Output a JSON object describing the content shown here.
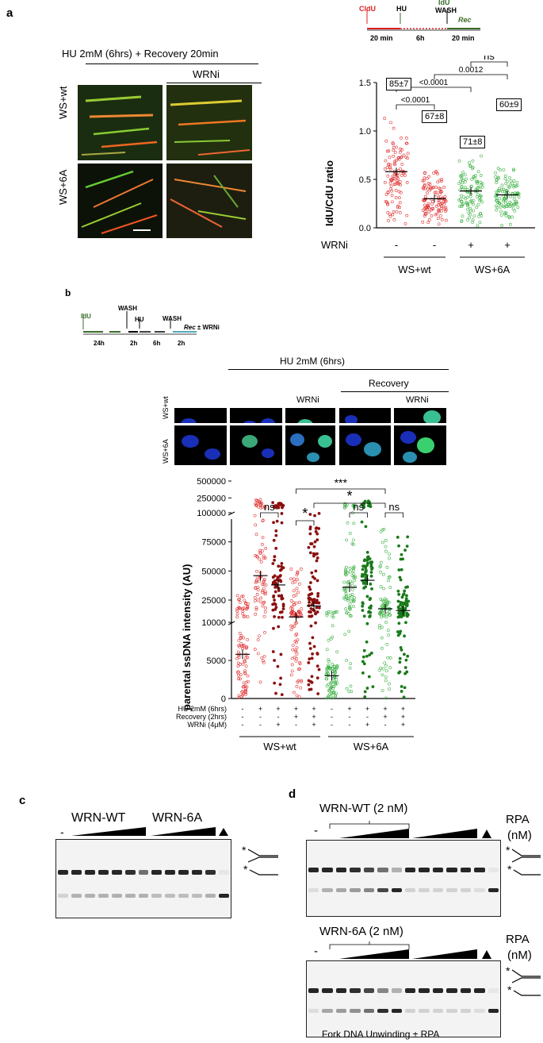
{
  "panel_a": {
    "letter": "a",
    "title": "HU 2mM (6hrs) + Recovery 20min",
    "wrni_label": "WRNi",
    "row_labels": [
      "WS+wt",
      "WS+6A"
    ],
    "schematic": {
      "cldu": "CldU",
      "hu": "HU",
      "idu": "IdU",
      "wash": "WASH",
      "rec": "Rec",
      "t1": "20 min",
      "t2": "6h",
      "t3": "20 min"
    },
    "chart_data": {
      "type": "scatter",
      "ylabel": "IdU/CdU ratio",
      "ylim": [
        0,
        1.5
      ],
      "yticks": [
        "0.0",
        "0.5",
        "1.0",
        "1.5"
      ],
      "groups": [
        {
          "wrni": "-",
          "genotype": "WS+wt",
          "mean": 0.58,
          "percent": "85±7",
          "color": "#e03030"
        },
        {
          "wrni": "-",
          "genotype": "WS+wt",
          "mean": 0.3,
          "percent": "67±8",
          "color": "#e03030"
        },
        {
          "wrni": "+",
          "genotype": "WS+6A",
          "mean": 0.38,
          "percent": "71±8",
          "color": "#3cb043"
        },
        {
          "wrni": "+",
          "genotype": "WS+6A",
          "mean": 0.34,
          "percent": "60±9",
          "color": "#3cb043"
        }
      ],
      "comparisons": [
        {
          "groups": [
            1,
            2
          ],
          "label": "<0.0001"
        },
        {
          "groups": [
            1,
            3
          ],
          "label": "<0.0001"
        },
        {
          "groups": [
            2,
            4
          ],
          "label": "0.0012"
        },
        {
          "groups": [
            3,
            4
          ],
          "label": "ns"
        }
      ],
      "xlabel_row": "WRNi",
      "genotypes": [
        "WS+wt",
        "WS+6A"
      ]
    }
  },
  "panel_b": {
    "letter": "b",
    "schematic": {
      "idu": "IdU",
      "wash1": "WASH",
      "hu": "HU",
      "wash2": "WASH",
      "rec": "Rec",
      "rec_suffix": "± WRNi",
      "t1": "24h",
      "t2": "2h",
      "t3": "6h",
      "t4": "2h"
    },
    "header": "HU 2mM (6hrs)",
    "recovery": "Recovery",
    "wrni1": "WRNi",
    "wrni2": "WRNi",
    "row_labels": [
      "WS+wt",
      "WS+6A"
    ],
    "chart_data": {
      "type": "scatter",
      "ylabel": "parental ssDNA intensity (AU)",
      "yticks": [
        "0",
        "5000",
        "10000",
        "25000",
        "50000",
        "75000",
        "100000",
        "250000",
        "500000"
      ],
      "groups": [
        {
          "hu": "-",
          "recovery": "-",
          "wrni": "-",
          "genotype": "WS+wt",
          "mean": 5800,
          "color": "#e03030"
        },
        {
          "hu": "+",
          "recovery": "-",
          "wrni": "-",
          "genotype": "WS+wt",
          "mean": 46000,
          "color": "#e03030"
        },
        {
          "hu": "+",
          "recovery": "-",
          "wrni": "+",
          "genotype": "WS+wt",
          "mean": 38000,
          "color": "#8b1010"
        },
        {
          "hu": "+",
          "recovery": "+",
          "wrni": "-",
          "genotype": "WS+wt",
          "mean": 10500,
          "color": "#e03030"
        },
        {
          "hu": "+",
          "recovery": "+",
          "wrni": "+",
          "genotype": "WS+wt",
          "mean": 20000,
          "color": "#8b1010"
        },
        {
          "hu": "-",
          "recovery": "-",
          "wrni": "-",
          "genotype": "WS+6A",
          "mean": 3000,
          "color": "#3cb043"
        },
        {
          "hu": "+",
          "recovery": "-",
          "wrni": "-",
          "genotype": "WS+6A",
          "mean": 36000,
          "color": "#3cb043"
        },
        {
          "hu": "+",
          "recovery": "-",
          "wrni": "+",
          "genotype": "WS+6A",
          "mean": 42000,
          "color": "#1a7a1a"
        },
        {
          "hu": "+",
          "recovery": "+",
          "wrni": "-",
          "genotype": "WS+6A",
          "mean": 17500,
          "color": "#3cb043"
        },
        {
          "hu": "+",
          "recovery": "+",
          "wrni": "+",
          "genotype": "WS+6A",
          "mean": 16000,
          "color": "#1a7a1a"
        }
      ],
      "comparisons": [
        {
          "groups": [
            2,
            3
          ],
          "label": "ns"
        },
        {
          "groups": [
            4,
            5
          ],
          "label": "*"
        },
        {
          "groups": [
            4,
            9
          ],
          "label": "***"
        },
        {
          "groups": [
            5,
            9
          ],
          "label": "*"
        },
        {
          "groups": [
            7,
            8
          ],
          "label": "ns"
        },
        {
          "groups": [
            9,
            10
          ],
          "label": "ns"
        }
      ],
      "row_labels": [
        "HU 2mM (6hrs)",
        "Recovery (2hrs)",
        "WRNi (4μM)"
      ],
      "genotypes": [
        "WS+wt",
        "WS+6A"
      ]
    }
  },
  "panel_c": {
    "letter": "c",
    "wt": "WRN-WT",
    "mut": "WRN-6A",
    "minus": "-"
  },
  "panel_d": {
    "letter": "d",
    "wt": "WRN-WT (2 nM)",
    "mut": "WRN-6A (2 nM)",
    "rpa": "RPA",
    "rpa_unit": "(nM)",
    "minus": "-",
    "caption": "Fork DNA Unwinding ± RPA"
  }
}
